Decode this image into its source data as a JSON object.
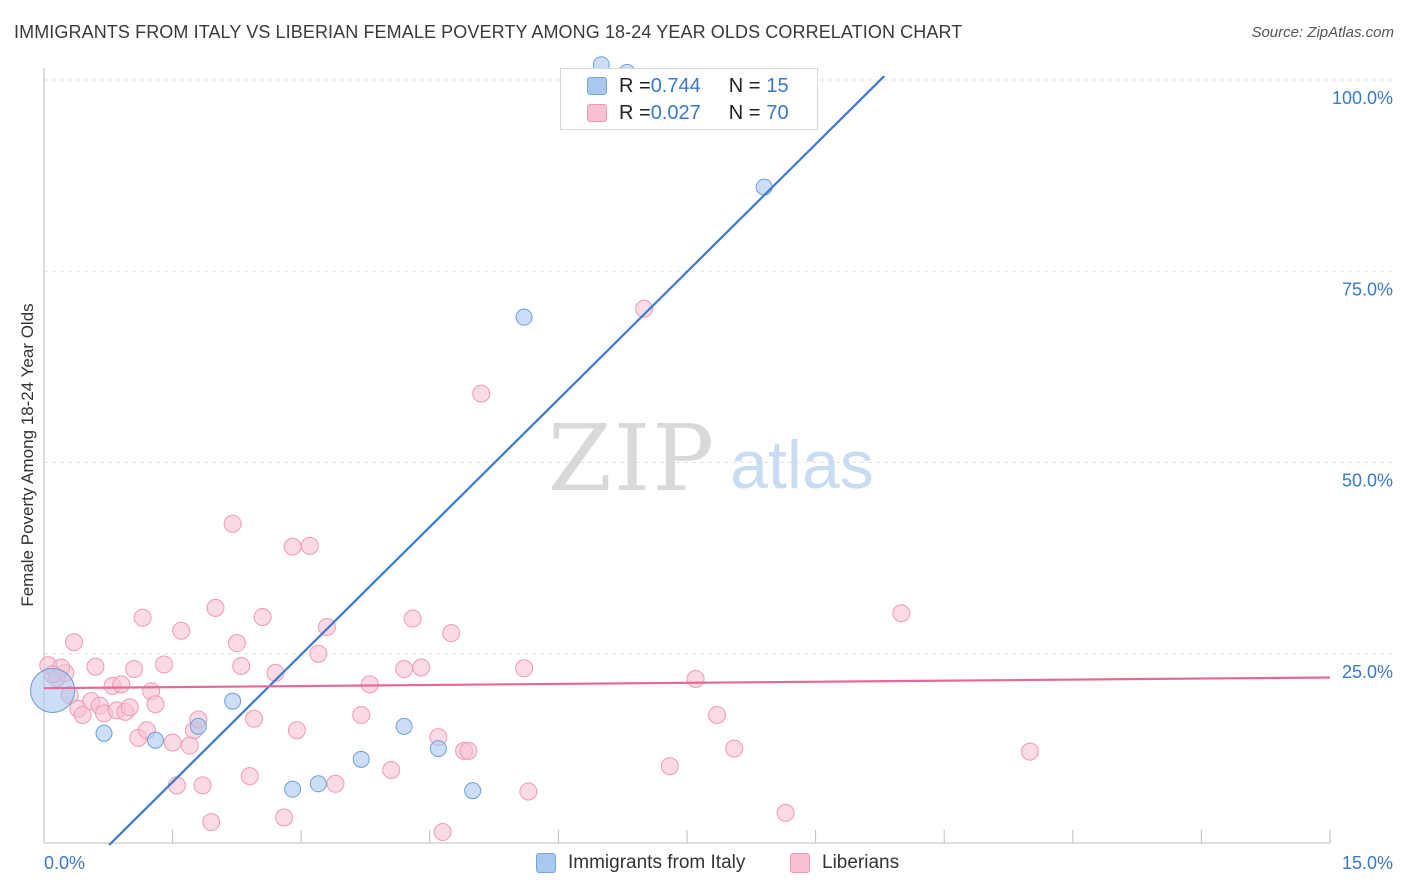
{
  "header": {
    "title": "IMMIGRANTS FROM ITALY VS LIBERIAN FEMALE POVERTY AMONG 18-24 YEAR OLDS CORRELATION CHART",
    "source": "Source: ZipAtlas.com"
  },
  "watermark": {
    "zip": "ZIP",
    "atlas": "atlas"
  },
  "legend": {
    "rows": [
      {
        "r_label": "R = ",
        "r_value": "0.744",
        "n_label": "N = ",
        "n_value": "15",
        "color": "#a9c8ee",
        "border": "#7aa5dc"
      },
      {
        "r_label": "R = ",
        "r_value": "0.027",
        "n_label": "N = ",
        "n_value": "70",
        "color": "#f7c1d2",
        "border": "#ec9ab4"
      }
    ]
  },
  "bottom_legend": {
    "italy": "Immigrants from Italy",
    "liberians": "Liberians"
  },
  "chart_data": {
    "type": "scatter",
    "title": "IMMIGRANTS FROM ITALY VS LIBERIAN FEMALE POVERTY AMONG 18-24 YEAR OLDS CORRELATION CHART",
    "xlabel": "",
    "ylabel": "Female Poverty Among 18-24 Year Olds",
    "xlim": [
      0,
      15
    ],
    "ylim": [
      0,
      100
    ],
    "x_tick_labels": [
      {
        "value": 0,
        "label": "0.0%"
      },
      {
        "value": 15,
        "label": "15.0%"
      }
    ],
    "y_tick_labels": [
      {
        "value": 25,
        "label": "25.0%"
      },
      {
        "value": 50,
        "label": "50.0%"
      },
      {
        "value": 75,
        "label": "75.0%"
      },
      {
        "value": 100,
        "label": "100.0%"
      }
    ],
    "grid": true,
    "legend_position": "top-center",
    "colors": {
      "italy_fill": "#a9c8ee",
      "italy_stroke": "#6f9fd8",
      "italy_line": "#3a78d4",
      "liberia_fill": "#f7c1d2",
      "liberia_stroke": "#ee9bb5",
      "liberia_line": "#e8679a",
      "tick_label": "#3a78c9"
    },
    "series": [
      {
        "name": "Immigrants from Italy",
        "points": [
          [
            0.1,
            20.2
          ],
          [
            0.7,
            14.6
          ],
          [
            1.3,
            13.7
          ],
          [
            1.8,
            15.5
          ],
          [
            2.2,
            18.8
          ],
          [
            2.9,
            7.3
          ],
          [
            3.2,
            8.0
          ],
          [
            3.7,
            11.2
          ],
          [
            4.2,
            15.5
          ],
          [
            4.6,
            12.6
          ],
          [
            5.0,
            7.1
          ],
          [
            5.6,
            69.0
          ],
          [
            6.8,
            101.0
          ],
          [
            8.4,
            86.0
          ],
          [
            6.5,
            102.0
          ]
        ],
        "sizes": [
          44,
          16,
          16,
          16,
          16,
          16,
          16,
          16,
          16,
          16,
          16,
          16,
          16,
          16,
          16
        ],
        "trend": {
          "x": [
            0.76,
            9.8
          ],
          "y": [
            0.0,
            100.5
          ]
        }
      },
      {
        "name": "Liberians",
        "points": [
          [
            0.05,
            23.5
          ],
          [
            0.15,
            21.8
          ],
          [
            0.25,
            22.5
          ],
          [
            0.3,
            19.6
          ],
          [
            0.35,
            26.5
          ],
          [
            0.4,
            17.8
          ],
          [
            0.45,
            17.0
          ],
          [
            0.55,
            18.8
          ],
          [
            0.6,
            23.3
          ],
          [
            0.65,
            18.2
          ],
          [
            0.7,
            17.2
          ],
          [
            0.8,
            20.8
          ],
          [
            0.85,
            17.6
          ],
          [
            0.9,
            21.0
          ],
          [
            0.95,
            17.4
          ],
          [
            1.0,
            18.0
          ],
          [
            1.05,
            23.0
          ],
          [
            1.1,
            14.0
          ],
          [
            1.15,
            29.7
          ],
          [
            1.2,
            15.0
          ],
          [
            1.25,
            20.1
          ],
          [
            1.3,
            18.4
          ],
          [
            1.4,
            23.6
          ],
          [
            1.5,
            13.4
          ],
          [
            1.55,
            7.8
          ],
          [
            1.6,
            28.0
          ],
          [
            1.7,
            13.0
          ],
          [
            1.75,
            15.0
          ],
          [
            1.8,
            16.4
          ],
          [
            1.85,
            7.8
          ],
          [
            1.95,
            3.0
          ],
          [
            2.0,
            31.0
          ],
          [
            2.2,
            42.0
          ],
          [
            2.25,
            26.4
          ],
          [
            2.3,
            23.4
          ],
          [
            2.4,
            9.0
          ],
          [
            2.45,
            16.5
          ],
          [
            2.55,
            29.8
          ],
          [
            2.7,
            22.5
          ],
          [
            2.8,
            3.6
          ],
          [
            2.9,
            39.0
          ],
          [
            2.95,
            15.0
          ],
          [
            3.1,
            39.1
          ],
          [
            3.2,
            25.0
          ],
          [
            3.3,
            28.5
          ],
          [
            3.4,
            8.0
          ],
          [
            3.7,
            17.0
          ],
          [
            3.8,
            21.0
          ],
          [
            4.05,
            9.8
          ],
          [
            4.2,
            23.0
          ],
          [
            4.3,
            29.6
          ],
          [
            4.4,
            23.2
          ],
          [
            4.6,
            14.1
          ],
          [
            4.65,
            1.7
          ],
          [
            4.75,
            27.7
          ],
          [
            4.9,
            12.3
          ],
          [
            4.95,
            12.3
          ],
          [
            5.1,
            59.0
          ],
          [
            5.6,
            23.1
          ],
          [
            5.65,
            7.0
          ],
          [
            7.0,
            70.1
          ],
          [
            7.3,
            10.3
          ],
          [
            7.6,
            21.7
          ],
          [
            7.85,
            17.0
          ],
          [
            8.05,
            12.6
          ],
          [
            8.65,
            4.2
          ],
          [
            10.0,
            30.3
          ],
          [
            11.5,
            12.2
          ],
          [
            0.2,
            23.2
          ],
          [
            0.1,
            22.3
          ]
        ],
        "trend": {
          "x": [
            0.0,
            15.0
          ],
          "y": [
            20.5,
            21.9
          ]
        }
      }
    ]
  }
}
